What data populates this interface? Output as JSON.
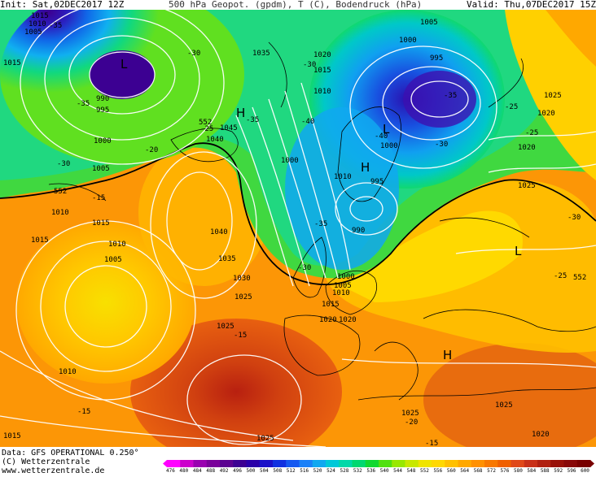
{
  "header": {
    "init": "Init: Sat,02DEC2017 12Z",
    "title": "500 hPa Geopot. (gpdm), T (C), Bodendruck (hPa)",
    "valid": "Valid: Thu,07DEC2017 15Z"
  },
  "footer": {
    "data": "Data: GFS OPERATIONAL 0.250°",
    "copyright": "(C) Wetterzentrale",
    "url": "www.wetterzentrale.de"
  },
  "colorbar": {
    "ticks": [
      "476",
      "480",
      "484",
      "488",
      "492",
      "496",
      "500",
      "504",
      "508",
      "512",
      "516",
      "520",
      "524",
      "528",
      "532",
      "536",
      "540",
      "544",
      "548",
      "552",
      "556",
      "560",
      "564",
      "568",
      "572",
      "576",
      "580",
      "584",
      "588",
      "592",
      "596",
      "600"
    ],
    "colors": [
      "#ff00ff",
      "#cc00cc",
      "#9900b0",
      "#7a009a",
      "#5a0090",
      "#3c0092",
      "#2a00a8",
      "#1a10c8",
      "#1030e0",
      "#1458f0",
      "#1a80f8",
      "#10a8f0",
      "#00c8d8",
      "#00d8a8",
      "#00d870",
      "#10d830",
      "#50e010",
      "#98e800",
      "#c8e800",
      "#f0e400",
      "#ffd800",
      "#ffc000",
      "#ffa800",
      "#ff9000",
      "#f87800",
      "#f06000",
      "#e04818",
      "#c83018",
      "#b02010",
      "#981008",
      "#880808",
      "#780000"
    ]
  },
  "map_labels": {
    "isobars": [
      "1015",
      "1010",
      "1005",
      "1015",
      "990",
      "995",
      "1000",
      "1005",
      "1010",
      "1015",
      "1010",
      "1005",
      "1000",
      "1010",
      "1015",
      "1020",
      "1025",
      "1030",
      "1035",
      "1040",
      "1045",
      "1040",
      "1035",
      "1020",
      "1015",
      "1010",
      "1000",
      "995",
      "990",
      "995",
      "1000",
      "1005",
      "1010",
      "1020",
      "1025",
      "1020",
      "1025",
      "1025",
      "1005",
      "1000",
      "1010",
      "1015",
      "1020",
      "1025",
      "1025",
      "1020",
      "1015",
      "1025"
    ],
    "temps": [
      "-35",
      "-30",
      "-35",
      "-30",
      "-20",
      "-15",
      "-25",
      "-35",
      "-30",
      "-40",
      "-35",
      "-40",
      "-30",
      "-35",
      "-25",
      "-25",
      "-30",
      "-25",
      "-30",
      "-15",
      "-15",
      "-20",
      "-15"
    ],
    "geopot": [
      "552",
      "552",
      "552"
    ],
    "pressure_centres": [
      "L",
      "H",
      "L",
      "H",
      "L",
      "H"
    ]
  }
}
